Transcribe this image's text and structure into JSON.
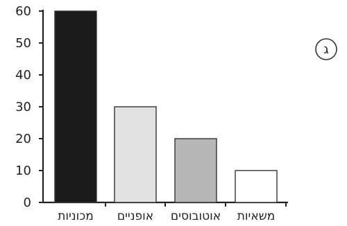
{
  "chart_data": {
    "type": "bar",
    "categories": [
      "מכוניות",
      "אופניים",
      "אוטובוסים",
      "משאיות"
    ],
    "values": [
      60,
      30,
      20,
      10
    ],
    "ylim": [
      0,
      60
    ],
    "yticks": [
      0,
      10,
      20,
      30,
      40,
      50,
      60
    ],
    "bar_colors": [
      "#1a1a1a",
      "#e2e2e2",
      "#b7b7b7",
      "#ffffff"
    ],
    "title": "",
    "xlabel": "",
    "ylabel": "",
    "grid": false
  },
  "panel_label": "ג"
}
